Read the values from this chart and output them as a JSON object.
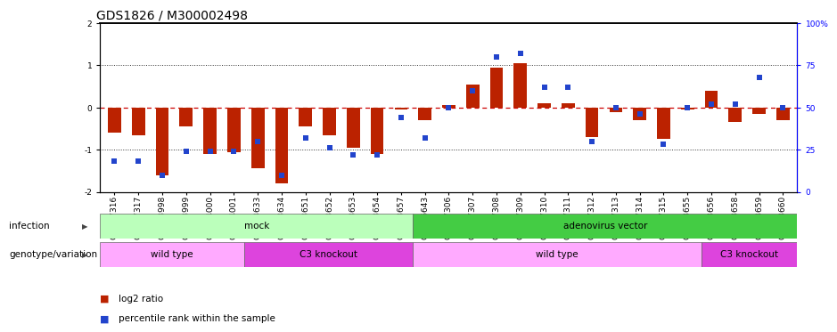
{
  "title": "GDS1826 / M300002498",
  "samples": [
    "GSM87316",
    "GSM87317",
    "GSM93998",
    "GSM93999",
    "GSM94000",
    "GSM94001",
    "GSM93633",
    "GSM93634",
    "GSM93651",
    "GSM93652",
    "GSM93653",
    "GSM93654",
    "GSM93657",
    "GSM86643",
    "GSM87306",
    "GSM87307",
    "GSM87308",
    "GSM87309",
    "GSM87310",
    "GSM87311",
    "GSM87312",
    "GSM87313",
    "GSM87314",
    "GSM87315",
    "GSM93655",
    "GSM93656",
    "GSM93658",
    "GSM93659",
    "GSM93660"
  ],
  "log2_ratio": [
    -0.6,
    -0.65,
    -1.6,
    -0.45,
    -1.1,
    -1.05,
    -1.45,
    -1.8,
    -0.45,
    -0.65,
    -0.95,
    -1.1,
    -0.05,
    -0.3,
    0.05,
    0.55,
    0.95,
    1.05,
    0.1,
    0.1,
    -0.7,
    -0.1,
    -0.3,
    -0.75,
    -0.05,
    0.4,
    -0.35,
    -0.15,
    -0.3
  ],
  "percentile": [
    18,
    18,
    10,
    24,
    24,
    24,
    30,
    10,
    32,
    26,
    22,
    22,
    44,
    32,
    50,
    60,
    80,
    82,
    62,
    62,
    30,
    50,
    46,
    28,
    50,
    52,
    52,
    68,
    50
  ],
  "infection_groups": [
    {
      "label": "mock",
      "start": 0,
      "end": 13,
      "color": "#bbffbb"
    },
    {
      "label": "adenovirus vector",
      "start": 13,
      "end": 29,
      "color": "#44cc44"
    }
  ],
  "genotype_groups": [
    {
      "label": "wild type",
      "start": 0,
      "end": 6,
      "color": "#ffaaff"
    },
    {
      "label": "C3 knockout",
      "start": 6,
      "end": 13,
      "color": "#dd44dd"
    },
    {
      "label": "wild type",
      "start": 13,
      "end": 25,
      "color": "#ffaaff"
    },
    {
      "label": "C3 knockout",
      "start": 25,
      "end": 29,
      "color": "#dd44dd"
    }
  ],
  "ylim": [
    -2,
    2
  ],
  "y2lim": [
    0,
    100
  ],
  "bar_color": "#bb2200",
  "dot_color": "#2244cc",
  "zero_line_color": "#cc0000",
  "bg_color": "#ffffff",
  "title_fontsize": 10,
  "tick_fontsize": 6.5,
  "label_fontsize": 7.5,
  "annot_fontsize": 7.5
}
